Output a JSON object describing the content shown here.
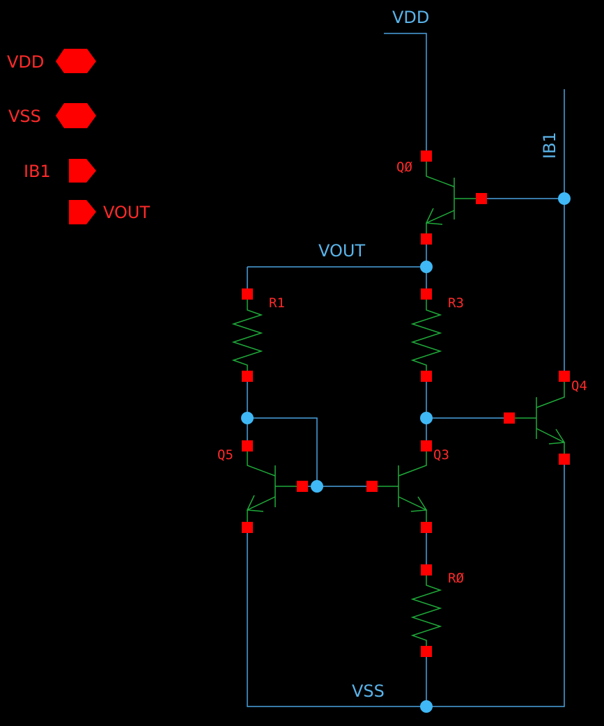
{
  "colors": {
    "background": "#000000",
    "wire": "#4aa3e0",
    "component": "#1faa3a",
    "pin": "#ff0000",
    "junction": "#3fb8f5",
    "label": "#ff2a2a",
    "net_label": "#5ab4ea"
  },
  "ports": {
    "vdd": "VDD",
    "vss": "VSS",
    "ib1": "IB1",
    "vout": "VOUT"
  },
  "nets": {
    "vdd": "VDD",
    "vss": "VSS",
    "ib1": "IB1",
    "vout": "VOUT"
  },
  "components": {
    "q0": "QØ",
    "q3": "Q3",
    "q4": "Q4",
    "q5": "Q5",
    "r0": "RØ",
    "r1": "R1",
    "r3": "R3"
  }
}
